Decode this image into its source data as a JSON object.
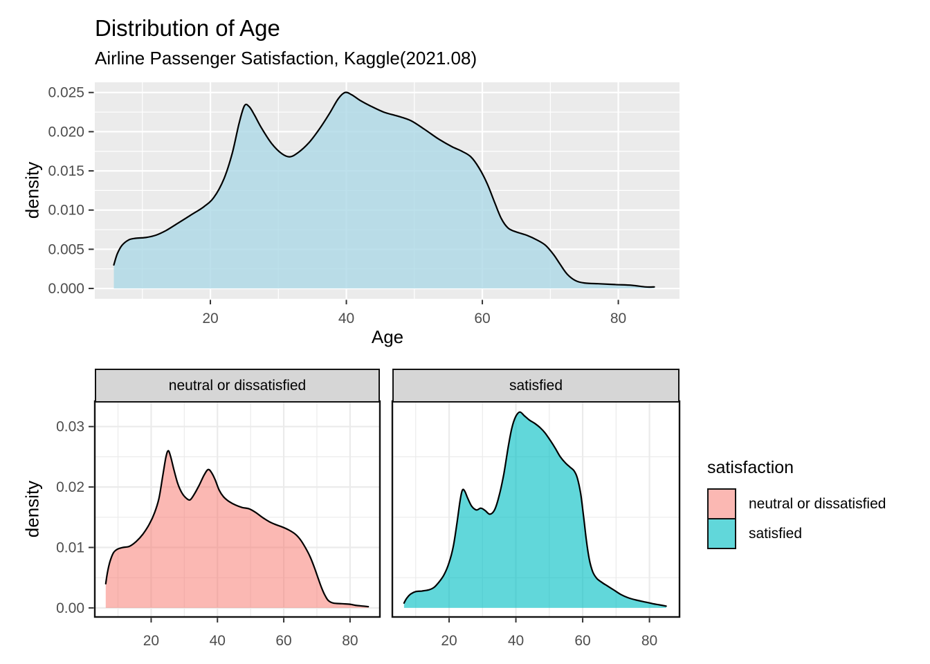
{
  "header": {
    "title": "Distribution of Age",
    "subtitle": "Airline Passenger Satisfaction, Kaggle(2021.08)"
  },
  "axis_titles": {
    "x": "Age",
    "y": "density"
  },
  "legend": {
    "title": "satisfaction",
    "position": "right",
    "entries": [
      {
        "label": "neutral or dissatisfied",
        "fill": "rgba(248,118,109,0.52)"
      },
      {
        "label": "satisfied",
        "fill": "rgba(0,191,196,0.62)"
      }
    ]
  },
  "colors": {
    "top_panel_bg": "#EBEBEB",
    "top_grid": "#FFFFFF",
    "facet_panel_bg": "#FFFFFF",
    "facet_grid": "#EBEBEB",
    "facet_border": "#111111",
    "strip_bg": "#D6D6D6",
    "curve_stroke": "#000000",
    "tick_mark": "#333333",
    "tick_text": "#4D4D4D",
    "overall_fill": "rgba(173,216,230,0.80)"
  },
  "chart_data": [
    {
      "id": "overall",
      "type": "area",
      "title": "Distribution of Age (all passengers)",
      "xlabel": "Age",
      "ylabel": "density",
      "xlim": [
        3,
        89
      ],
      "ylim": [
        -0.00132,
        0.0263
      ],
      "xticks": {
        "values": [
          20,
          40,
          60,
          80
        ],
        "labels": [
          "20",
          "40",
          "60",
          "80"
        ]
      },
      "yticks": {
        "values": [
          0,
          0.005,
          0.01,
          0.015,
          0.02,
          0.025
        ],
        "labels": [
          "0.000",
          "0.005",
          "0.010",
          "0.015",
          "0.020",
          "0.025"
        ]
      },
      "xminor": [
        10,
        30,
        50,
        70
      ],
      "yminor": [
        0.0025,
        0.0075,
        0.0125,
        0.0175,
        0.0225
      ],
      "theme": {
        "bg": "#EBEBEB",
        "grid": "#FFFFFF",
        "border": null
      },
      "series": {
        "fill": "rgba(173,216,230,0.80)",
        "stroke": "#000000"
      },
      "points": [
        [
          5.8,
          0.003
        ],
        [
          6.3,
          0.0044
        ],
        [
          7,
          0.0055
        ],
        [
          8,
          0.0062
        ],
        [
          9,
          0.0064
        ],
        [
          10.5,
          0.0065
        ],
        [
          12,
          0.0068
        ],
        [
          13.5,
          0.0074
        ],
        [
          15,
          0.0082
        ],
        [
          17,
          0.0093
        ],
        [
          19,
          0.0104
        ],
        [
          20.5,
          0.0116
        ],
        [
          22,
          0.014
        ],
        [
          23.2,
          0.0172
        ],
        [
          24.2,
          0.021
        ],
        [
          25,
          0.0233
        ],
        [
          25.7,
          0.0232
        ],
        [
          26.5,
          0.0221
        ],
        [
          27.5,
          0.0205
        ],
        [
          29,
          0.0185
        ],
        [
          30.5,
          0.0172
        ],
        [
          31.7,
          0.0168
        ],
        [
          33,
          0.0174
        ],
        [
          34.5,
          0.0186
        ],
        [
          36,
          0.0203
        ],
        [
          37.5,
          0.0223
        ],
        [
          38.8,
          0.0242
        ],
        [
          39.8,
          0.025
        ],
        [
          40.8,
          0.0247
        ],
        [
          42,
          0.024
        ],
        [
          43.5,
          0.0233
        ],
        [
          45.5,
          0.0225
        ],
        [
          47.5,
          0.022
        ],
        [
          49.5,
          0.0214
        ],
        [
          51.5,
          0.0203
        ],
        [
          53.5,
          0.0191
        ],
        [
          55.5,
          0.0181
        ],
        [
          57,
          0.0175
        ],
        [
          58.3,
          0.0168
        ],
        [
          59.5,
          0.0154
        ],
        [
          60.7,
          0.0134
        ],
        [
          61.8,
          0.011
        ],
        [
          62.8,
          0.0089
        ],
        [
          63.8,
          0.0077
        ],
        [
          65,
          0.0072
        ],
        [
          66.5,
          0.0068
        ],
        [
          68,
          0.0062
        ],
        [
          69.3,
          0.0055
        ],
        [
          70.5,
          0.0043
        ],
        [
          71.5,
          0.003
        ],
        [
          72.5,
          0.0018
        ],
        [
          73.7,
          0.001
        ],
        [
          75,
          0.0007
        ],
        [
          77,
          0.0006
        ],
        [
          79.5,
          0.0005
        ],
        [
          82,
          0.0004
        ],
        [
          84,
          0.0002
        ],
        [
          85.3,
          0.0002
        ]
      ]
    },
    {
      "id": "neutral",
      "type": "area",
      "facet_label": "neutral or dissatisfied",
      "xlabel": "",
      "ylabel": "density",
      "xlim": [
        3,
        89
      ],
      "ylim": [
        -0.0015,
        0.0342
      ],
      "xticks": {
        "values": [
          20,
          40,
          60,
          80
        ],
        "labels": [
          "20",
          "40",
          "60",
          "80"
        ]
      },
      "yticks": {
        "values": [
          0,
          0.01,
          0.02,
          0.03
        ],
        "labels": [
          "0.00",
          "0.01",
          "0.02",
          "0.03"
        ]
      },
      "xminor": [
        10,
        30,
        50,
        70
      ],
      "yminor": [
        0.005,
        0.015,
        0.025
      ],
      "theme": {
        "bg": "#FFFFFF",
        "grid": "#EBEBEB",
        "border": "#111111"
      },
      "series": {
        "fill": "rgba(248,118,109,0.52)",
        "stroke": "#000000"
      },
      "points": [
        [
          6.3,
          0.004
        ],
        [
          6.8,
          0.0058
        ],
        [
          7.6,
          0.0077
        ],
        [
          8.6,
          0.0091
        ],
        [
          9.8,
          0.0097
        ],
        [
          11.5,
          0.01
        ],
        [
          13.5,
          0.0102
        ],
        [
          15.5,
          0.011
        ],
        [
          17.5,
          0.0122
        ],
        [
          19.5,
          0.0139
        ],
        [
          21,
          0.0157
        ],
        [
          22.3,
          0.018
        ],
        [
          23.4,
          0.0215
        ],
        [
          24.4,
          0.0248
        ],
        [
          25.1,
          0.026
        ],
        [
          25.8,
          0.0252
        ],
        [
          26.8,
          0.023
        ],
        [
          28,
          0.0206
        ],
        [
          29.3,
          0.019
        ],
        [
          30.7,
          0.0181
        ],
        [
          31.8,
          0.0179
        ],
        [
          33,
          0.0188
        ],
        [
          34.5,
          0.0203
        ],
        [
          36,
          0.022
        ],
        [
          37.2,
          0.0229
        ],
        [
          38.2,
          0.0224
        ],
        [
          39.3,
          0.0212
        ],
        [
          40.5,
          0.0195
        ],
        [
          41.8,
          0.0184
        ],
        [
          43.5,
          0.0176
        ],
        [
          45.5,
          0.017
        ],
        [
          47.5,
          0.0166
        ],
        [
          49.5,
          0.0164
        ],
        [
          51.5,
          0.0158
        ],
        [
          53.5,
          0.015
        ],
        [
          55.5,
          0.0143
        ],
        [
          57.5,
          0.0138
        ],
        [
          59.5,
          0.0134
        ],
        [
          61.5,
          0.0129
        ],
        [
          63.5,
          0.0122
        ],
        [
          65,
          0.0113
        ],
        [
          66.5,
          0.01
        ],
        [
          68,
          0.0084
        ],
        [
          69.3,
          0.0066
        ],
        [
          70.5,
          0.0047
        ],
        [
          71.5,
          0.0032
        ],
        [
          72.5,
          0.002
        ],
        [
          73.5,
          0.0012
        ],
        [
          75,
          0.0008
        ],
        [
          77.5,
          0.0007
        ],
        [
          80,
          0.0006
        ],
        [
          82,
          0.0004
        ],
        [
          84,
          0.0003
        ],
        [
          85.5,
          0.0002
        ]
      ]
    },
    {
      "id": "satisfied",
      "type": "area",
      "facet_label": "satisfied",
      "xlabel": "",
      "ylabel": "",
      "xlim": [
        3,
        89
      ],
      "ylim": [
        -0.0015,
        0.0342
      ],
      "xticks": {
        "values": [
          20,
          40,
          60,
          80
        ],
        "labels": [
          "20",
          "40",
          "60",
          "80"
        ]
      },
      "yticks": {
        "values": [],
        "labels": []
      },
      "xminor": [
        10,
        30,
        50,
        70
      ],
      "yminor": [
        0.005,
        0.015,
        0.025
      ],
      "theme": {
        "bg": "#FFFFFF",
        "grid": "#EBEBEB",
        "border": "#111111"
      },
      "series": {
        "fill": "rgba(0,191,196,0.62)",
        "stroke": "#000000"
      },
      "points": [
        [
          6.5,
          0.0008
        ],
        [
          7.3,
          0.0016
        ],
        [
          8.5,
          0.0023
        ],
        [
          10,
          0.0027
        ],
        [
          12,
          0.0028
        ],
        [
          14,
          0.003
        ],
        [
          15.5,
          0.0034
        ],
        [
          17,
          0.0043
        ],
        [
          18.5,
          0.0055
        ],
        [
          20,
          0.0075
        ],
        [
          21.3,
          0.0103
        ],
        [
          22.4,
          0.0142
        ],
        [
          23.3,
          0.0178
        ],
        [
          24,
          0.0195
        ],
        [
          24.7,
          0.0193
        ],
        [
          25.6,
          0.0181
        ],
        [
          26.8,
          0.0168
        ],
        [
          28.2,
          0.0162
        ],
        [
          29.5,
          0.0165
        ],
        [
          30.8,
          0.0161
        ],
        [
          32.2,
          0.0155
        ],
        [
          33.6,
          0.0162
        ],
        [
          35,
          0.0186
        ],
        [
          36.4,
          0.0222
        ],
        [
          37.7,
          0.0266
        ],
        [
          38.8,
          0.0298
        ],
        [
          40,
          0.0317
        ],
        [
          41.2,
          0.0324
        ],
        [
          42.5,
          0.0318
        ],
        [
          44,
          0.0311
        ],
        [
          45.7,
          0.0305
        ],
        [
          47.3,
          0.0298
        ],
        [
          48.8,
          0.0289
        ],
        [
          50.3,
          0.0277
        ],
        [
          51.8,
          0.0264
        ],
        [
          53.3,
          0.025
        ],
        [
          54.8,
          0.024
        ],
        [
          56.2,
          0.0233
        ],
        [
          57.4,
          0.0227
        ],
        [
          58.4,
          0.0215
        ],
        [
          59.4,
          0.0189
        ],
        [
          60.3,
          0.015
        ],
        [
          61.1,
          0.0112
        ],
        [
          62,
          0.008
        ],
        [
          63,
          0.006
        ],
        [
          64.2,
          0.0049
        ],
        [
          65.8,
          0.0042
        ],
        [
          67.5,
          0.0036
        ],
        [
          69.5,
          0.0029
        ],
        [
          71.5,
          0.0022
        ],
        [
          73.5,
          0.0017
        ],
        [
          76,
          0.0013
        ],
        [
          78.5,
          0.001
        ],
        [
          81,
          0.0007
        ],
        [
          83,
          0.0005
        ],
        [
          85,
          0.0003
        ]
      ]
    }
  ]
}
